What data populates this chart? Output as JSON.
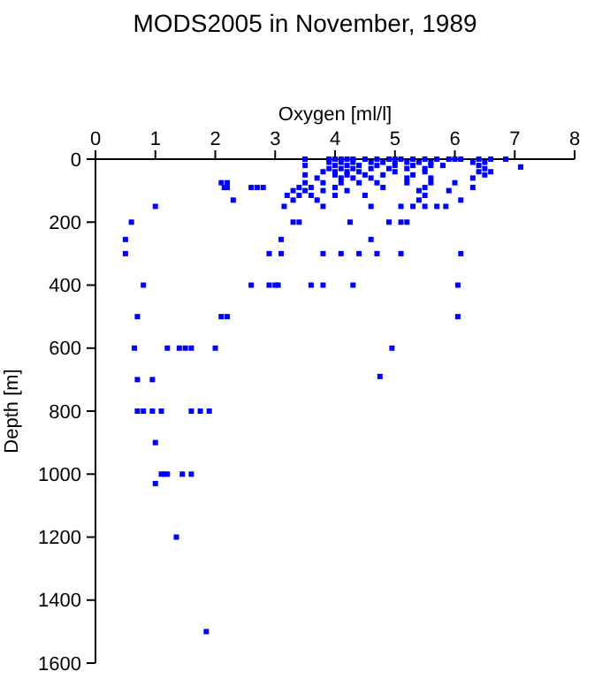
{
  "chart_data": {
    "type": "scatter",
    "title": "MODS2005 in November, 1989",
    "xlabel": "Oxygen [ml/l]",
    "ylabel": "Depth [m]",
    "xlim": [
      0,
      8
    ],
    "xticks": [
      0,
      1,
      2,
      3,
      4,
      5,
      6,
      7,
      8
    ],
    "ylim": [
      1600,
      0
    ],
    "yticks": [
      0,
      200,
      400,
      600,
      800,
      1000,
      1200,
      1400,
      1600
    ],
    "grid": false,
    "marker": "square",
    "series": [
      {
        "color": "#0000ff",
        "x": [
          3.5,
          3.9,
          4.0,
          4.1,
          4.2,
          4.3,
          4.5,
          4.7,
          4.9,
          5.0,
          5.1,
          5.3,
          5.5,
          5.7,
          5.9,
          6.0,
          6.1,
          6.4,
          6.6,
          6.85,
          3.9,
          4.1,
          4.3,
          4.6,
          4.8,
          5.0,
          5.2,
          5.4,
          5.6,
          6.3,
          6.5,
          3.5,
          4.0,
          4.2,
          4.4,
          4.7,
          5.0,
          5.3,
          5.6,
          5.8,
          6.4,
          7.1,
          3.9,
          4.1,
          4.3,
          4.6,
          4.9,
          5.2,
          5.5,
          6.5,
          3.8,
          4.0,
          4.2,
          4.4,
          5.0,
          5.5,
          6.4,
          6.6,
          3.5,
          4.0,
          4.2,
          4.5,
          4.8,
          5.3,
          6.5,
          3.7,
          4.1,
          4.3,
          4.6,
          5.2,
          5.6,
          6.3,
          2.1,
          2.2,
          3.5,
          3.8,
          4.1,
          4.4,
          4.7,
          5.2,
          5.6,
          6.0,
          2.15,
          2.2,
          2.6,
          2.7,
          2.8,
          3.4,
          3.6,
          4.0,
          4.8,
          5.5,
          6.3,
          3.3,
          3.5,
          3.8,
          4.2,
          5.4,
          5.9,
          3.2,
          3.4,
          3.6,
          4.0,
          4.5,
          5.5,
          2.3,
          3.3,
          3.7,
          5.4,
          6.1,
          1.0,
          3.15,
          3.8,
          4.6,
          5.1,
          5.3,
          5.5,
          5.7,
          5.85,
          0.6,
          3.3,
          3.4,
          4.25,
          4.9,
          5.1,
          5.2,
          0.5,
          3.1,
          4.6,
          0.5,
          2.9,
          3.1,
          3.8,
          4.1,
          4.4,
          4.7,
          5.1,
          6.1,
          0.8,
          2.6,
          2.9,
          3.0,
          3.05,
          3.6,
          3.8,
          4.3,
          6.05,
          0.7,
          2.1,
          2.2,
          6.05,
          0.65,
          1.2,
          1.4,
          1.5,
          1.6,
          2.0,
          4.95,
          4.75,
          0.7,
          0.95,
          0.7,
          0.8,
          0.95,
          1.1,
          1.6,
          1.75,
          1.9,
          1.0,
          1.0,
          1.1,
          1.15,
          1.2,
          1.45,
          1.6,
          1.35,
          1.85
        ],
        "values": [
          0,
          0,
          0,
          0,
          0,
          0,
          0,
          0,
          0,
          0,
          0,
          0,
          0,
          0,
          0,
          0,
          0,
          0,
          0,
          0,
          10,
          10,
          10,
          10,
          10,
          10,
          10,
          10,
          10,
          10,
          10,
          20,
          20,
          20,
          20,
          20,
          20,
          20,
          20,
          20,
          20,
          25,
          30,
          30,
          30,
          30,
          30,
          30,
          30,
          30,
          40,
          40,
          40,
          40,
          40,
          40,
          40,
          40,
          50,
          50,
          50,
          50,
          50,
          50,
          50,
          60,
          60,
          60,
          60,
          60,
          60,
          60,
          75,
          75,
          75,
          75,
          75,
          75,
          75,
          75,
          75,
          75,
          90,
          90,
          90,
          90,
          90,
          90,
          90,
          90,
          90,
          90,
          90,
          100,
          100,
          100,
          100,
          100,
          100,
          115,
          115,
          115,
          115,
          115,
          115,
          130,
          130,
          130,
          130,
          130,
          150,
          150,
          150,
          150,
          150,
          150,
          150,
          150,
          150,
          200,
          200,
          200,
          200,
          200,
          200,
          200,
          255,
          255,
          255,
          300,
          300,
          300,
          300,
          300,
          300,
          300,
          300,
          300,
          400,
          400,
          400,
          400,
          400,
          400,
          400,
          400,
          400,
          500,
          500,
          500,
          500,
          600,
          600,
          600,
          600,
          600,
          600,
          600,
          690,
          700,
          700,
          800,
          800,
          800,
          800,
          800,
          800,
          800,
          900,
          1030,
          1000,
          1000,
          1000,
          1000,
          1000,
          1200,
          1500
        ]
      }
    ]
  }
}
